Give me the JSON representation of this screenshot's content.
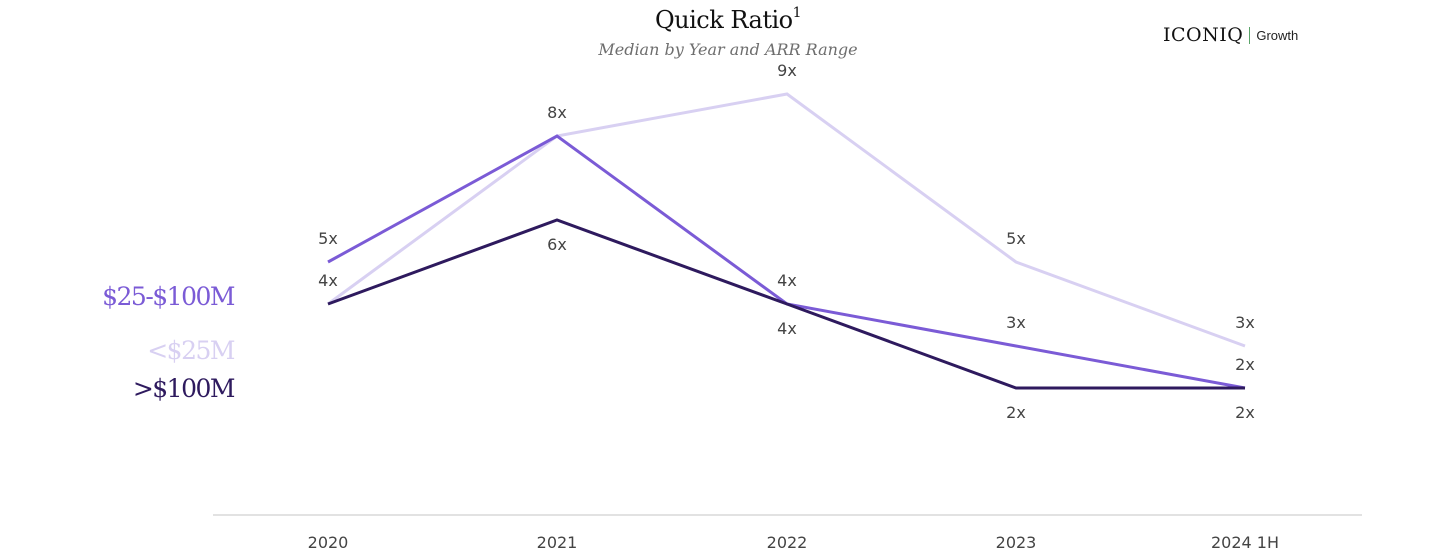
{
  "header": {
    "title": "Quick Ratio",
    "title_sup": "1",
    "subtitle": "Median by Year and ARR Range"
  },
  "brand": {
    "name": "ICONIQ",
    "sub": "Growth",
    "divider_color": "#5aa469"
  },
  "chart_data": {
    "type": "line",
    "title": "Quick Ratio",
    "subtitle": "Median by Year and ARR Range",
    "categories": [
      "2020",
      "2021",
      "2022",
      "2023",
      "2024 1H"
    ],
    "ylim": [
      0,
      10
    ],
    "grid": false,
    "legend_position": "left",
    "value_suffix": "x",
    "series": [
      {
        "name": "$25-$100M",
        "color": "#7b5bd6",
        "values": [
          5,
          8,
          4,
          3,
          2
        ],
        "labels": [
          "5x",
          "8x",
          "4x",
          "3x",
          "2x"
        ]
      },
      {
        "name": "<$25M",
        "color": "#d8d0f2",
        "values": [
          4,
          8,
          9,
          5,
          3
        ],
        "labels": [
          "4x",
          "",
          "9x",
          "5x",
          "3x"
        ]
      },
      {
        "name": ">$100M",
        "color": "#2e1a5e",
        "values": [
          4,
          6,
          4,
          2,
          2
        ],
        "labels": [
          "",
          "6x",
          "4x",
          "2x",
          "2x"
        ]
      }
    ]
  }
}
